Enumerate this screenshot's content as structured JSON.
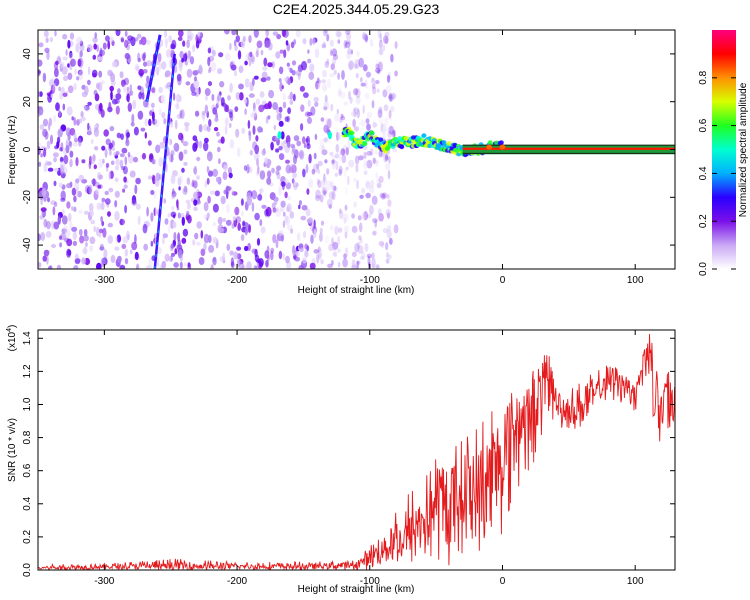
{
  "figure_title": "C2E4.2025.344.05.29.G23",
  "chart_data": [
    {
      "type": "heatmap",
      "title": "",
      "xlabel": "Height of straight line (km)",
      "ylabel": "Frequency (Hz)",
      "xlim": [
        -350,
        130
      ],
      "ylim": [
        -50,
        50
      ],
      "x_ticks": [
        -300,
        -200,
        -100,
        0,
        100
      ],
      "y_ticks": [
        -40,
        -20,
        0,
        20,
        40
      ],
      "colorbar": {
        "label": "Normalized spectral amplitude",
        "range": [
          0,
          1
        ],
        "ticks": [
          "0.0",
          "0.2",
          "0.4",
          "0.6",
          "0.8"
        ],
        "colors": [
          "#ffffff",
          "#c9a8f5",
          "#7a10e8",
          "#2a00ff",
          "#00b0ff",
          "#00ffd0",
          "#20ff20",
          "#d8ff00",
          "#ff9000",
          "#ff0000",
          "#ff007f"
        ]
      },
      "features": {
        "noise_region_x": [
          -350,
          -100
        ],
        "streaks": [
          {
            "x": [
              -268,
              -258
            ],
            "y": [
              20,
              48
            ]
          },
          {
            "x": [
              -262,
              -247
            ],
            "y": [
              -50,
              40
            ]
          }
        ],
        "signal_track": [
          {
            "x": -168,
            "y": 6
          },
          {
            "x": -130,
            "y": 6
          },
          {
            "x": -118,
            "y": 8
          },
          {
            "x": -110,
            "y": 2
          },
          {
            "x": -100,
            "y": 6
          },
          {
            "x": -90,
            "y": 1
          },
          {
            "x": -80,
            "y": 3
          },
          {
            "x": -70,
            "y": 3
          },
          {
            "x": -60,
            "y": 4
          },
          {
            "x": -50,
            "y": 2
          },
          {
            "x": -40,
            "y": 1
          },
          {
            "x": -30,
            "y": -1
          },
          {
            "x": -20,
            "y": 0
          },
          {
            "x": -10,
            "y": 1
          },
          {
            "x": 0,
            "y": 1
          },
          {
            "x": 130,
            "y": 0
          }
        ]
      }
    },
    {
      "type": "line",
      "title": "",
      "xlabel": "Height of straight line (km)",
      "ylabel": "SNR (10 * v/v)",
      "y_exponent_label": "(x10",
      "y_exponent": "4",
      "xlim": [
        -350,
        130
      ],
      "ylim": [
        0,
        1.45
      ],
      "x_ticks": [
        -300,
        -200,
        -100,
        0,
        100
      ],
      "y_ticks": [
        "0.0",
        "0.2",
        "0.4",
        "0.6",
        "0.8",
        "1.0",
        "1.2",
        "1.4"
      ],
      "series": [
        {
          "color": "#e41a1c",
          "x": [
            -350,
            -300,
            -250,
            -200,
            -150,
            -110,
            -100,
            -90,
            -80,
            -70,
            -60,
            -50,
            -40,
            -30,
            -20,
            -10,
            0,
            10,
            20,
            30,
            35,
            40,
            50,
            60,
            70,
            80,
            90,
            100,
            110,
            115,
            120,
            125,
            130
          ],
          "y": [
            0.01,
            0.02,
            0.02,
            0.02,
            0.02,
            0.03,
            0.08,
            0.12,
            0.15,
            0.2,
            0.3,
            0.4,
            0.35,
            0.55,
            0.45,
            0.5,
            0.75,
            0.95,
            0.9,
            1.1,
            1.25,
            1.05,
            0.95,
            1.0,
            1.05,
            1.2,
            1.15,
            1.1,
            1.4,
            1.2,
            0.95,
            1.15,
            1.05
          ],
          "envelope_max": [
            0.04,
            0.04,
            0.07,
            0.05,
            0.05,
            0.06,
            0.15,
            0.25,
            0.4,
            0.5,
            0.55,
            0.7,
            0.75,
            0.9,
            0.9,
            1.1,
            1.0,
            1.1,
            1.2,
            1.3,
            1.3,
            1.1,
            1.1,
            1.15,
            1.2,
            1.25,
            1.2,
            1.1,
            1.45,
            1.3,
            1.1,
            1.2,
            1.1
          ],
          "envelope_min": [
            0.0,
            0.0,
            0.0,
            0.0,
            0.0,
            0.0,
            0.0,
            0.02,
            0.03,
            0.02,
            0.03,
            0.05,
            0.02,
            0.02,
            0.05,
            0.1,
            0.2,
            0.45,
            0.55,
            0.8,
            0.95,
            0.85,
            0.85,
            0.85,
            0.95,
            1.0,
            1.0,
            0.95,
            1.2,
            0.8,
            0.65,
            0.7,
            0.8
          ]
        }
      ]
    }
  ]
}
